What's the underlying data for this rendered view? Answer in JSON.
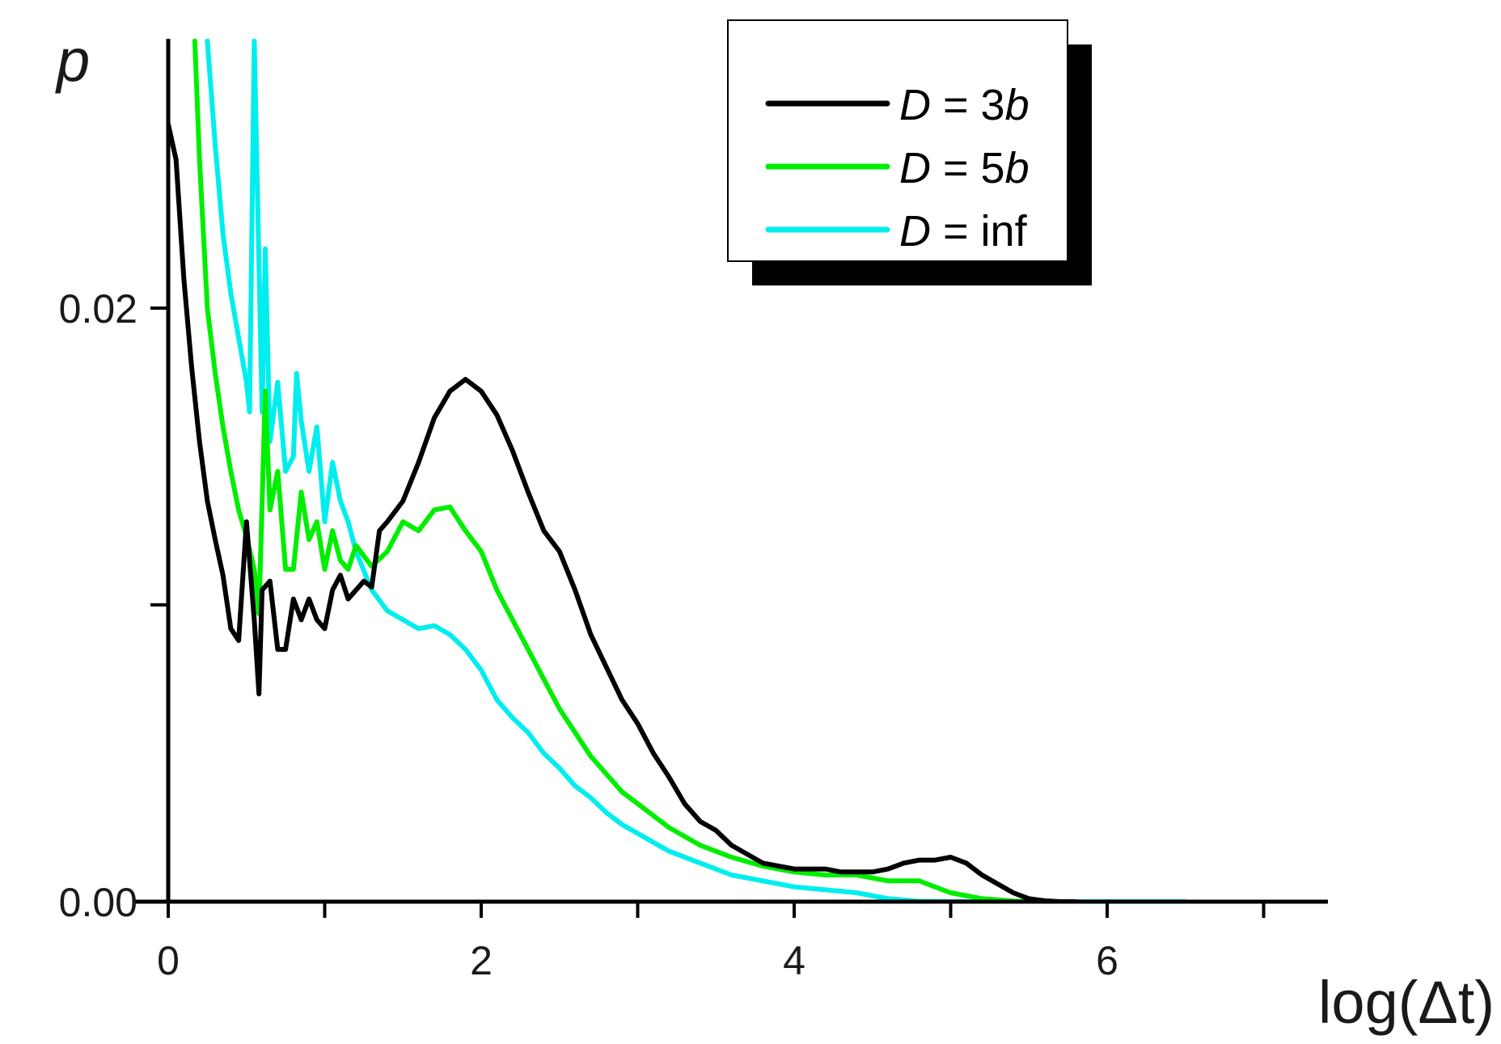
{
  "chart_data": {
    "type": "line",
    "ylabel": "p",
    "xlabel": "log(Δt)",
    "xlim": [
      0,
      7.4
    ],
    "ylim": [
      0,
      0.029
    ],
    "x_ticks": [
      {
        "value": 0,
        "label": "0"
      },
      {
        "value": 1,
        "label": ""
      },
      {
        "value": 2,
        "label": "2"
      },
      {
        "value": 3,
        "label": ""
      },
      {
        "value": 4,
        "label": "4"
      },
      {
        "value": 5,
        "label": ""
      },
      {
        "value": 6,
        "label": "6"
      },
      {
        "value": 7,
        "label": ""
      }
    ],
    "y_ticks": [
      {
        "value": 0,
        "label": "0.00"
      },
      {
        "value": 0.01,
        "label": ""
      },
      {
        "value": 0.02,
        "label": "0.02"
      }
    ],
    "legend": {
      "position": "top-right",
      "entries": [
        {
          "var": "D",
          "rest": " = 3",
          "suffix": "b",
          "color": "#000000"
        },
        {
          "var": "D",
          "rest": " = 5",
          "suffix": "b",
          "color": "#00ee00"
        },
        {
          "var": "D",
          "rest": " = inf",
          "suffix": "",
          "color": "#00eeee"
        }
      ]
    },
    "series": [
      {
        "name": "D = 3b",
        "color": "#000000",
        "x": [
          0,
          0.05,
          0.1,
          0.15,
          0.2,
          0.25,
          0.3,
          0.35,
          0.4,
          0.45,
          0.5,
          0.55,
          0.58,
          0.6,
          0.65,
          0.7,
          0.75,
          0.8,
          0.85,
          0.9,
          0.95,
          1.0,
          1.05,
          1.1,
          1.15,
          1.2,
          1.25,
          1.3,
          1.35,
          1.4,
          1.5,
          1.6,
          1.7,
          1.8,
          1.9,
          2.0,
          2.1,
          2.2,
          2.3,
          2.4,
          2.5,
          2.6,
          2.7,
          2.8,
          2.9,
          3.0,
          3.1,
          3.2,
          3.3,
          3.4,
          3.5,
          3.6,
          3.7,
          3.8,
          3.9,
          4.0,
          4.1,
          4.2,
          4.3,
          4.4,
          4.5,
          4.6,
          4.7,
          4.8,
          4.9,
          5.0,
          5.1,
          5.2,
          5.3,
          5.4,
          5.5,
          5.6,
          5.7,
          5.8
        ],
        "y": [
          0.0262,
          0.025,
          0.021,
          0.018,
          0.0155,
          0.0135,
          0.0122,
          0.011,
          0.0092,
          0.0088,
          0.0128,
          0.0095,
          0.007,
          0.0105,
          0.0108,
          0.0085,
          0.0085,
          0.0102,
          0.0095,
          0.0102,
          0.0095,
          0.0092,
          0.0105,
          0.011,
          0.0102,
          0.0105,
          0.0108,
          0.0106,
          0.0125,
          0.0128,
          0.0135,
          0.0148,
          0.0163,
          0.0172,
          0.0176,
          0.0172,
          0.0164,
          0.0152,
          0.0138,
          0.0125,
          0.0118,
          0.0105,
          0.009,
          0.0079,
          0.0068,
          0.006,
          0.005,
          0.0042,
          0.0033,
          0.0027,
          0.0024,
          0.0019,
          0.0016,
          0.0013,
          0.0012,
          0.0011,
          0.0011,
          0.0011,
          0.001,
          0.001,
          0.001,
          0.0011,
          0.0013,
          0.0014,
          0.0014,
          0.0015,
          0.0013,
          0.0009,
          0.0006,
          0.0003,
          0.0001,
          3e-05,
          0.0,
          0.0
        ]
      },
      {
        "name": "D = 5b",
        "color": "#00ee00",
        "x": [
          0.17,
          0.2,
          0.25,
          0.3,
          0.35,
          0.4,
          0.45,
          0.5,
          0.55,
          0.58,
          0.62,
          0.65,
          0.7,
          0.75,
          0.8,
          0.85,
          0.9,
          0.95,
          1.0,
          1.05,
          1.1,
          1.15,
          1.2,
          1.3,
          1.4,
          1.5,
          1.6,
          1.7,
          1.8,
          1.9,
          2.0,
          2.1,
          2.2,
          2.3,
          2.4,
          2.5,
          2.6,
          2.7,
          2.8,
          2.9,
          3.0,
          3.2,
          3.4,
          3.6,
          3.8,
          4.0,
          4.2,
          4.4,
          4.6,
          4.8,
          5.0,
          5.2,
          5.4,
          5.6
        ],
        "y": [
          0.029,
          0.025,
          0.02,
          0.0178,
          0.016,
          0.0145,
          0.0132,
          0.0123,
          0.0112,
          0.0097,
          0.0172,
          0.0132,
          0.0145,
          0.0112,
          0.0112,
          0.0138,
          0.0122,
          0.0128,
          0.0112,
          0.0125,
          0.0115,
          0.0112,
          0.012,
          0.0113,
          0.0118,
          0.0128,
          0.0125,
          0.0132,
          0.0133,
          0.0125,
          0.0118,
          0.0105,
          0.0095,
          0.0085,
          0.0075,
          0.0065,
          0.0057,
          0.0049,
          0.0043,
          0.0037,
          0.0033,
          0.0025,
          0.0019,
          0.0015,
          0.0012,
          0.001,
          0.0009,
          0.0009,
          0.0007,
          0.0007,
          0.0003,
          0.0001,
          2e-05,
          0.0
        ]
      },
      {
        "name": "D = inf",
        "color": "#00eeee",
        "x": [
          0.25,
          0.3,
          0.35,
          0.4,
          0.45,
          0.5,
          0.52,
          0.55,
          0.6,
          0.62,
          0.65,
          0.7,
          0.75,
          0.8,
          0.82,
          0.85,
          0.9,
          0.95,
          1.0,
          1.05,
          1.1,
          1.15,
          1.2,
          1.3,
          1.4,
          1.5,
          1.6,
          1.7,
          1.8,
          1.9,
          2.0,
          2.1,
          2.2,
          2.3,
          2.4,
          2.5,
          2.6,
          2.7,
          2.8,
          2.9,
          3.0,
          3.2,
          3.4,
          3.6,
          3.8,
          4.0,
          4.2,
          4.4,
          4.6,
          4.8,
          5.0,
          5.4,
          5.8,
          6.2,
          6.5
        ],
        "y": [
          0.029,
          0.0255,
          0.0225,
          0.0205,
          0.019,
          0.0175,
          0.0165,
          0.029,
          0.0165,
          0.022,
          0.0155,
          0.0175,
          0.0145,
          0.015,
          0.0178,
          0.0162,
          0.0145,
          0.016,
          0.0128,
          0.0148,
          0.0135,
          0.0128,
          0.0118,
          0.0105,
          0.0098,
          0.0095,
          0.0092,
          0.0093,
          0.009,
          0.0085,
          0.0078,
          0.0068,
          0.0062,
          0.0057,
          0.005,
          0.0045,
          0.0039,
          0.0035,
          0.003,
          0.0026,
          0.0023,
          0.0017,
          0.0013,
          0.0009,
          0.0007,
          0.0005,
          0.0004,
          0.0003,
          0.0001,
          1e-05,
          0.0,
          0.0,
          0.0,
          0.0,
          0.0
        ]
      }
    ]
  }
}
